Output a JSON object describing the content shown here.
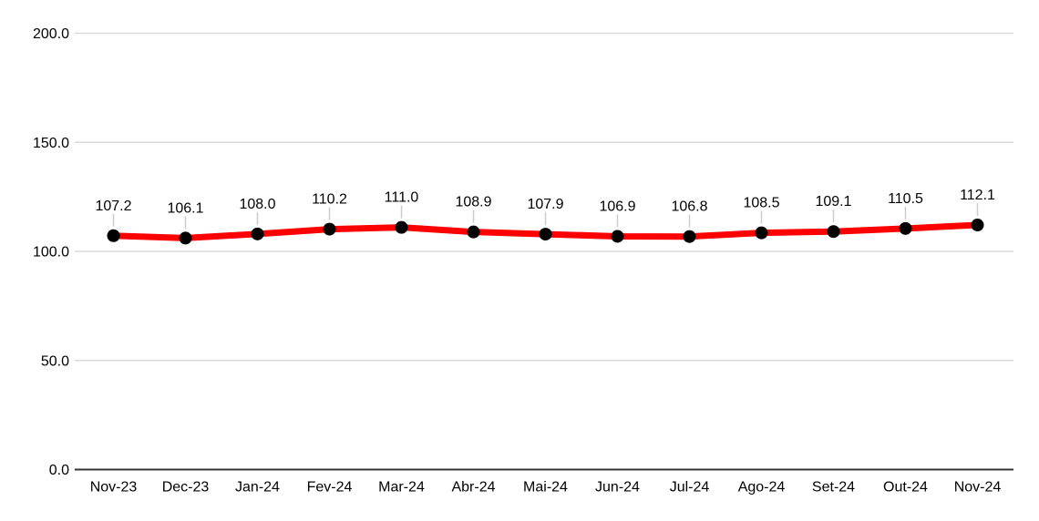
{
  "chart_data": {
    "type": "line",
    "title": "",
    "xlabel": "",
    "ylabel": "",
    "categories": [
      "Nov-23",
      "Dec-23",
      "Jan-24",
      "Fev-24",
      "Mar-24",
      "Abr-24",
      "Mai-24",
      "Jun-24",
      "Jul-24",
      "Ago-24",
      "Set-24",
      "Out-24",
      "Nov-24"
    ],
    "series": [
      {
        "name": "index",
        "values": [
          107.2,
          106.1,
          108.0,
          110.2,
          111.0,
          108.9,
          107.9,
          106.9,
          106.8,
          108.5,
          109.1,
          110.5,
          112.1
        ],
        "point_labels": [
          "107.2",
          "106.1",
          "108.0",
          "110.2",
          "111.0",
          "108.9",
          "107.9",
          "106.9",
          "106.8",
          "108.5",
          "109.1",
          "110.5",
          "112.1"
        ]
      }
    ],
    "ylim": [
      0,
      200
    ],
    "yticks": [
      0,
      50,
      100,
      150,
      200
    ],
    "ytick_labels": [
      "0.0",
      "50.0",
      "100.0",
      "150.0",
      "200.0"
    ],
    "grid": "horizontal",
    "legend": "none",
    "colors": {
      "line": "#ff0000",
      "point": "#000000",
      "gridline": "#d9d9d9",
      "axis_line": "#333333",
      "leader_line": "#cccccc",
      "tick_text": "#000000",
      "label_text": "#000000",
      "background": "#ffffff"
    }
  }
}
